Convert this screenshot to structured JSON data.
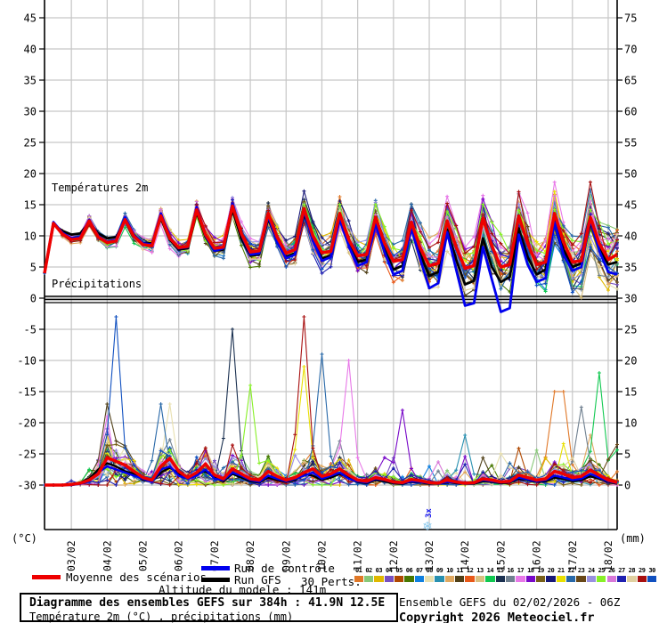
{
  "chart": {
    "temp_title": "Températures 2m",
    "precip_title": "Précipitations",
    "unit_left": "(°C)",
    "unit_right": "(mm)",
    "left_ticks": [
      45,
      40,
      35,
      30,
      25,
      20,
      15,
      10,
      5,
      0,
      -5,
      -10,
      -15,
      -20,
      -25,
      -30
    ],
    "right_ticks": [
      75,
      70,
      65,
      60,
      55,
      50,
      45,
      40,
      35,
      30,
      25,
      20,
      15,
      10,
      5,
      0
    ],
    "dates": [
      "03/02",
      "04/02",
      "05/02",
      "06/02",
      "07/02",
      "08/02",
      "09/02",
      "10/02",
      "11/02",
      "12/02",
      "13/02",
      "14/02",
      "15/02",
      "16/02",
      "17/02",
      "18/02"
    ],
    "snow_marker": {
      "symbol": "❄",
      "count_label": "3x",
      "date": "13/02"
    }
  },
  "chart_data": {
    "type": "line",
    "title": "Diagramme des ensembles GEFS sur 384h : 41.9N 12.5E",
    "x_start": "02/02 06Z",
    "x_end": "18/02 06Z",
    "x_hours_step": 6,
    "grid": true,
    "temperature": {
      "ylabel": "(°C)",
      "ylim": [
        -30,
        47
      ],
      "mean": [
        4.0,
        12.0,
        10.3,
        9.4,
        9.6,
        12.4,
        9.8,
        8.9,
        9.2,
        12.6,
        9.9,
        8.6,
        8.4,
        13.2,
        9.6,
        8.1,
        8.3,
        14.2,
        10.2,
        8.0,
        8.2,
        14.8,
        10.4,
        7.4,
        7.6,
        13.6,
        9.8,
        7.2,
        7.8,
        14.4,
        10.0,
        7.3,
        7.5,
        13.6,
        9.4,
        6.8,
        7.0,
        13.0,
        8.8,
        5.9,
        6.2,
        12.2,
        8.0,
        5.2,
        5.6,
        12.4,
        8.2,
        4.8,
        5.2,
        12.8,
        8.4,
        5.0,
        5.4,
        13.2,
        8.8,
        5.4,
        5.8,
        13.6,
        9.0,
        5.8,
        6.0,
        13.0,
        8.8,
        6.2,
        7.0
      ],
      "control": [
        4.0,
        12.2,
        10.5,
        9.6,
        9.8,
        12.6,
        10.0,
        9.0,
        9.4,
        13.0,
        10.2,
        8.8,
        8.6,
        13.6,
        9.8,
        8.0,
        8.2,
        14.6,
        10.0,
        7.6,
        8.0,
        15.2,
        10.2,
        7.0,
        7.2,
        13.2,
        9.0,
        6.4,
        7.0,
        14.0,
        9.2,
        6.0,
        6.6,
        12.6,
        8.4,
        5.2,
        5.8,
        12.0,
        7.4,
        3.8,
        4.4,
        11.2,
        6.2,
        1.6,
        2.4,
        10.6,
        4.6,
        -1.2,
        -0.8,
        8.2,
        3.0,
        -2.2,
        -1.6,
        10.2,
        5.4,
        2.6,
        3.2,
        12.2,
        7.0,
        4.4,
        5.0,
        12.6,
        7.6,
        4.2,
        3.8
      ],
      "gfs": [
        4.0,
        11.8,
        10.8,
        10.2,
        10.4,
        12.2,
        10.4,
        9.6,
        9.8,
        12.4,
        10.0,
        8.8,
        8.8,
        12.8,
        9.4,
        7.8,
        8.0,
        13.8,
        9.8,
        7.6,
        7.8,
        14.2,
        9.6,
        6.8,
        7.0,
        12.8,
        9.0,
        6.6,
        7.2,
        13.6,
        9.4,
        6.4,
        6.8,
        12.8,
        8.6,
        5.8,
        6.2,
        12.4,
        7.8,
        4.6,
        5.2,
        11.6,
        7.0,
        3.6,
        4.2,
        11.0,
        6.2,
        2.2,
        2.8,
        9.6,
        5.0,
        2.6,
        3.4,
        11.2,
        6.6,
        3.8,
        4.6,
        12.4,
        7.8,
        5.0,
        5.6,
        12.2,
        8.0,
        5.4,
        5.8
      ]
    },
    "precipitation": {
      "ylabel": "(mm)",
      "ylim": [
        0,
        77
      ],
      "mean": [
        0,
        0,
        0,
        0.1,
        0.3,
        0.8,
        1.8,
        4.4,
        3.8,
        3.2,
        2.2,
        1.2,
        0.8,
        3.0,
        4.3,
        2.2,
        1.2,
        2.0,
        3.4,
        1.6,
        1.0,
        2.6,
        1.8,
        1.0,
        0.8,
        2.2,
        1.4,
        0.8,
        1.2,
        2.0,
        2.6,
        1.4,
        1.8,
        2.6,
        1.6,
        0.8,
        0.6,
        1.2,
        0.9,
        0.5,
        0.4,
        0.9,
        0.7,
        0.4,
        0.3,
        0.8,
        0.5,
        0.3,
        0.4,
        1.0,
        0.8,
        0.5,
        0.6,
        1.6,
        1.2,
        0.8,
        1.0,
        2.2,
        1.8,
        1.2,
        1.4,
        2.4,
        1.6,
        0.8,
        0.4
      ],
      "control": [
        0,
        0,
        0,
        0,
        0.2,
        0.6,
        2,
        3,
        2.5,
        2,
        1.5,
        1,
        0.5,
        2.5,
        3,
        1.5,
        1,
        1.5,
        2.5,
        1,
        0.8,
        2,
        1.5,
        0.8,
        0.5,
        1.5,
        1,
        0.6,
        1,
        1.5,
        2,
        1,
        1.5,
        2,
        1,
        0.6,
        0.4,
        1,
        0.8,
        0.4,
        0.3,
        0.6,
        0.5,
        0.3,
        0.2,
        0.5,
        0.4,
        0.2,
        0.3,
        0.8,
        0.6,
        0.4,
        0.5,
        1.2,
        0.9,
        0.6,
        0.8,
        1.5,
        1.2,
        0.8,
        1,
        1.8,
        1.2,
        0.6,
        0.3
      ],
      "gfs": [
        0,
        0,
        0,
        0.1,
        0.4,
        1,
        2.5,
        3.5,
        3,
        2.2,
        1.8,
        0.8,
        0.6,
        2,
        2.8,
        1.8,
        1.2,
        1.8,
        2.2,
        1.2,
        0.6,
        1.8,
        1.2,
        0.6,
        0.4,
        1.2,
        0.8,
        0.5,
        0.8,
        1.8,
        1.5,
        0.8,
        1.2,
        1.8,
        1.2,
        0.5,
        0.3,
        0.8,
        0.6,
        0.3,
        0.2,
        0.5,
        0.4,
        0.2,
        0.2,
        0.4,
        0.3,
        0.2,
        0.2,
        0.6,
        0.5,
        0.3,
        0.4,
        1,
        0.8,
        0.5,
        0.6,
        1.2,
        1,
        0.6,
        0.8,
        1.4,
        1,
        0.5,
        0.2
      ],
      "events": [
        {
          "m": 29,
          "i": 8,
          "v": 27
        },
        {
          "m": 10,
          "i": 7,
          "v": 13
        },
        {
          "m": 16,
          "i": 7,
          "v": 11
        },
        {
          "m": 21,
          "i": 13,
          "v": 13
        },
        {
          "m": 7,
          "i": 14,
          "v": 13
        },
        {
          "m": 14,
          "i": 21,
          "v": 25
        },
        {
          "m": 24,
          "i": 23,
          "v": 16
        },
        {
          "m": 28,
          "i": 29,
          "v": 27
        },
        {
          "m": 20,
          "i": 29,
          "v": 19
        },
        {
          "m": 21,
          "i": 31,
          "v": 21
        },
        {
          "m": 16,
          "i": 34,
          "v": 20
        },
        {
          "m": 17,
          "i": 40,
          "v": 12
        },
        {
          "m": 8,
          "i": 47,
          "v": 8
        },
        {
          "m": 0,
          "i": 57,
          "v": 15
        },
        {
          "m": 0,
          "i": 58,
          "v": 15
        },
        {
          "m": 15,
          "i": 60,
          "v": 12.5
        },
        {
          "m": 13,
          "i": 62,
          "v": 18
        },
        {
          "m": 9,
          "i": 61,
          "v": 8
        }
      ]
    },
    "members": [
      {
        "num": "01",
        "color": "#e07828"
      },
      {
        "num": "02",
        "color": "#88c878"
      },
      {
        "num": "03",
        "color": "#e0b800"
      },
      {
        "num": "04",
        "color": "#7850c0"
      },
      {
        "num": "05",
        "color": "#b04800"
      },
      {
        "num": "06",
        "color": "#487800"
      },
      {
        "num": "07",
        "color": "#1080e0"
      },
      {
        "num": "08",
        "color": "#e8e0b0"
      },
      {
        "num": "09",
        "color": "#2890b0"
      },
      {
        "num": "10",
        "color": "#e0a860"
      },
      {
        "num": "11",
        "color": "#504018"
      },
      {
        "num": "12",
        "color": "#e85818"
      },
      {
        "num": "13",
        "color": "#d8c080"
      },
      {
        "num": "14",
        "color": "#10c850"
      },
      {
        "num": "15",
        "color": "#1a3050"
      },
      {
        "num": "16",
        "color": "#708090"
      },
      {
        "num": "17",
        "color": "#e878e8"
      },
      {
        "num": "18",
        "color": "#7808c8"
      },
      {
        "num": "19",
        "color": "#786018"
      },
      {
        "num": "20",
        "color": "#181878"
      },
      {
        "num": "21",
        "color": "#e8e000"
      },
      {
        "num": "22",
        "color": "#2868a8"
      },
      {
        "num": "23",
        "color": "#684818"
      },
      {
        "num": "24",
        "color": "#9890e0"
      },
      {
        "num": "25",
        "color": "#88f028"
      },
      {
        "num": "26",
        "color": "#d878d8"
      },
      {
        "num": "27",
        "color": "#2020b0"
      },
      {
        "num": "28",
        "color": "#e0d0a0"
      },
      {
        "num": "29",
        "color": "#a81010"
      },
      {
        "num": "30",
        "color": "#1050c0"
      }
    ]
  },
  "legend": {
    "mean_label": "Moyenne des scénarios",
    "mean_color": "#ee0000",
    "control_label": "Run de contrôle",
    "control_color": "#0000ee",
    "gfs_label": "Run GFS",
    "gfs_color": "#000000",
    "perts_label": "30 Perts.",
    "altitude_label": "Altitude du modele : 141m"
  },
  "footer": {
    "title": "Diagramme des ensembles GEFS sur 384h : 41.9N 12.5E",
    "subtitle": "Température 2m (°C) , précipitations (mm)",
    "run_info": "Ensemble GEFS du 02/02/2026 - 06Z",
    "copyright": "Copyright 2026 Meteociel.fr"
  }
}
